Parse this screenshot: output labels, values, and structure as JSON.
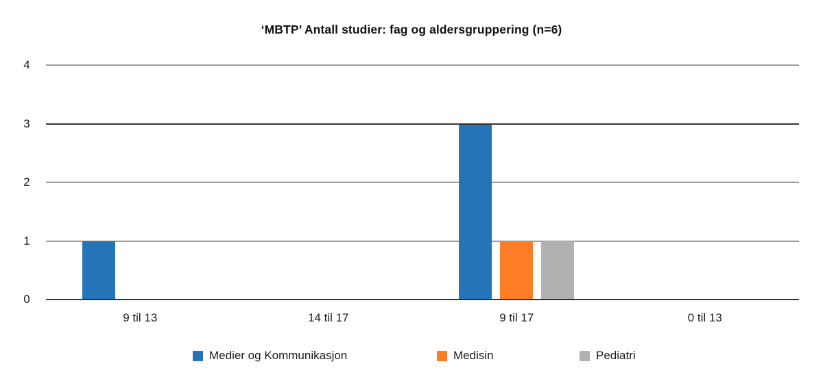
{
  "chart_data": {
    "type": "bar",
    "title": "‘MBTP’ Antall studier: fag og aldersgruppering (n=6)",
    "categories": [
      "9 til 13",
      "14 til 17",
      "9 til 17",
      "0 til 13"
    ],
    "series": [
      {
        "name": "Medier og Kommunikasjon",
        "color": "#2573B8",
        "values": [
          1,
          0,
          3,
          0
        ]
      },
      {
        "name": "Medisin",
        "color": "#FC7D26",
        "values": [
          0,
          0,
          1,
          0
        ]
      },
      {
        "name": "Pediatri",
        "color": "#B1B1B1",
        "values": [
          0,
          0,
          1,
          0
        ]
      }
    ],
    "xlabel": "",
    "ylabel": "",
    "ylim": [
      0,
      4
    ],
    "yticks": [
      0,
      1,
      2,
      3,
      4
    ],
    "dark_gridline_values": [
      0,
      3
    ],
    "grid": true,
    "legend_position": "bottom"
  }
}
